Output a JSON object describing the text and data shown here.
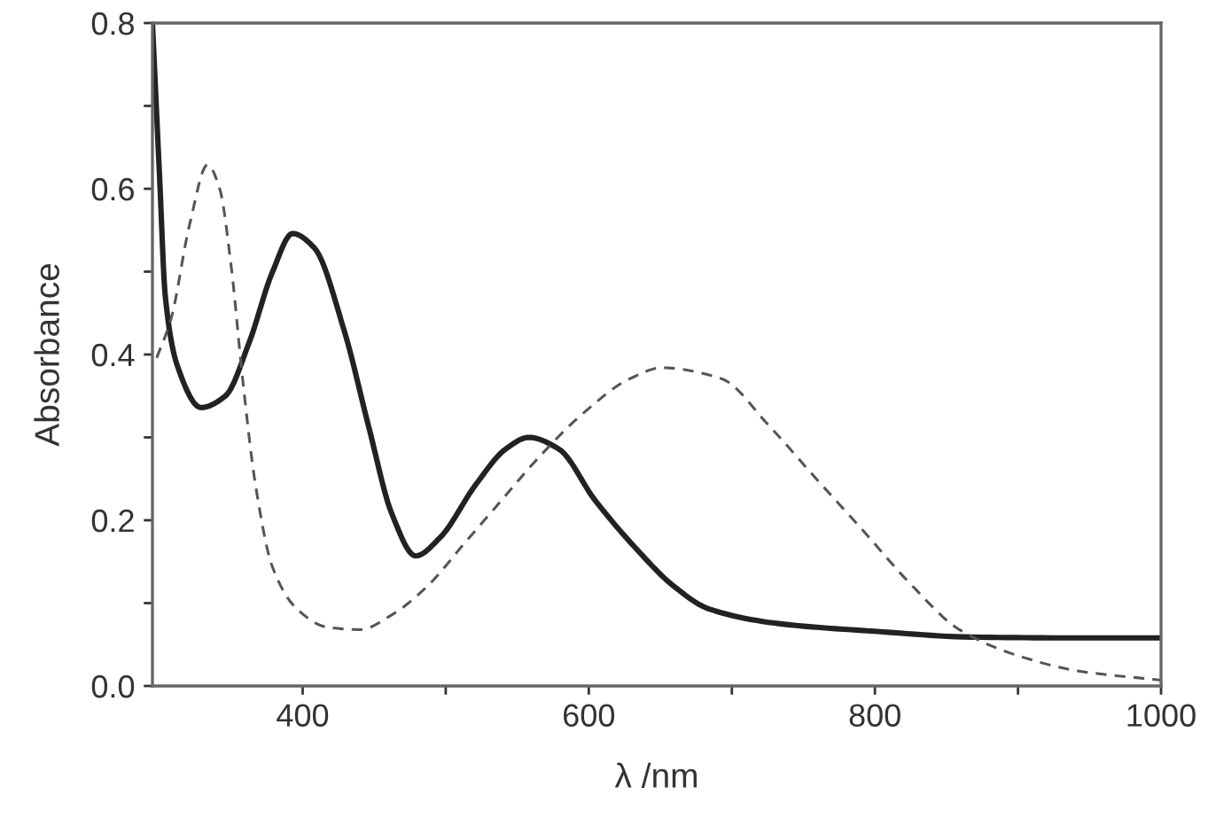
{
  "chart_data": {
    "type": "line",
    "xlabel": "λ /nm",
    "ylabel": "Absorbance",
    "series": [
      {
        "color": "#222222",
        "line_style": "solid",
        "x": [
          295,
          300,
          304,
          312.5,
          329,
          346,
          362.5,
          379,
          393,
          408,
          429,
          446,
          462.5,
          479,
          496,
          521,
          542,
          558,
          579,
          604,
          634,
          659,
          684,
          734,
          800,
          867.5,
          942.5,
          1000
        ],
        "values": [
          0.8,
          0.614,
          0.47,
          0.386,
          0.336,
          0.35,
          0.414,
          0.5,
          0.546,
          0.529,
          0.429,
          0.314,
          0.207,
          0.157,
          0.179,
          0.243,
          0.286,
          0.3,
          0.286,
          0.225,
          0.164,
          0.121,
          0.093,
          0.075,
          0.066,
          0.059,
          0.058,
          0.058
        ]
      },
      {
        "color": "#555555",
        "line_style": "dashed",
        "x": [
          298,
          308,
          321,
          333.5,
          342,
          350,
          358,
          367,
          379,
          396,
          417,
          440,
          462.5,
          487.5,
          512.5,
          537.5,
          562.5,
          596,
          629,
          651,
          692.5,
          726,
          759,
          792.5,
          826,
          859,
          901,
          942.5,
          1000
        ],
        "values": [
          0.396,
          0.443,
          0.557,
          0.629,
          0.6,
          0.507,
          0.371,
          0.243,
          0.143,
          0.093,
          0.071,
          0.068,
          0.086,
          0.121,
          0.171,
          0.221,
          0.271,
          0.329,
          0.371,
          0.384,
          0.371,
          0.314,
          0.25,
          0.186,
          0.121,
          0.068,
          0.036,
          0.018,
          0.007
        ]
      }
    ],
    "xlim": [
      295,
      1000
    ],
    "xticks": [
      400,
      {
        "value": 500,
        "label": null
      },
      600,
      {
        "value": 700,
        "label": null
      },
      800,
      {
        "value": 900,
        "label": null
      },
      1000
    ],
    "ylim": [
      0,
      0.8
    ],
    "yticks": [
      {
        "value": 0,
        "label": "0.0"
      },
      {
        "value": 0.1,
        "label": null
      },
      {
        "value": 0.2,
        "label": "0.2"
      },
      {
        "value": 0.3,
        "label": null
      },
      {
        "value": 0.4,
        "label": "0.4"
      },
      {
        "value": 0.5,
        "label": null
      },
      {
        "value": 0.6,
        "label": "0.6"
      },
      {
        "value": 0.7,
        "label": null
      },
      {
        "value": 0.8,
        "label": "0.8"
      }
    ],
    "grid": false
  }
}
